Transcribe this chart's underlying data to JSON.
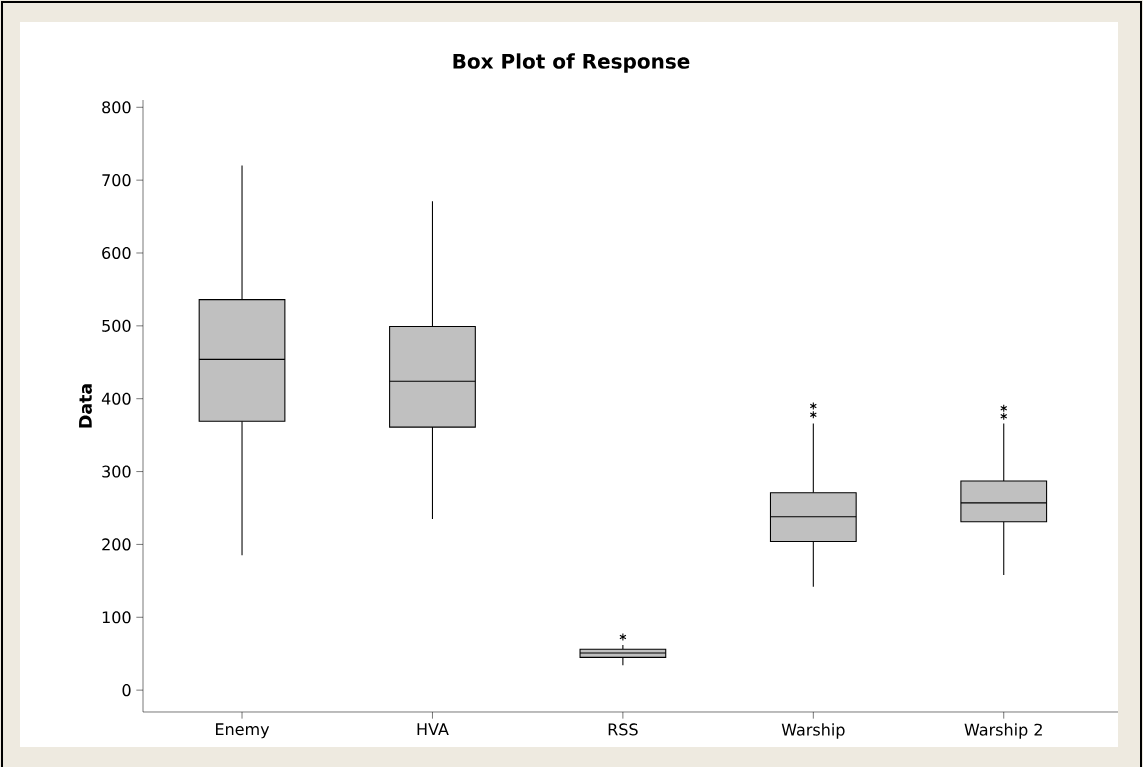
{
  "chart_data": {
    "type": "box",
    "title": "Box Plot of Response",
    "ylabel": "Data",
    "categories": [
      "Enemy",
      "HVA",
      "RSS",
      "Warship",
      "Warship 2"
    ],
    "color": "#c0c0c0",
    "boxes": [
      {
        "low": 185,
        "q1": 369,
        "median": 454,
        "q3": 536,
        "high": 720
      },
      {
        "low": 235,
        "q1": 361,
        "median": 424,
        "q3": 499,
        "high": 671
      },
      {
        "low": 34,
        "q1": 45,
        "median": 51,
        "q3": 56,
        "high": 62,
        "outliers": [
          73
        ]
      },
      {
        "low": 142,
        "q1": 204,
        "median": 238,
        "q3": 271,
        "high": 366,
        "outliers": [
          378,
          390
        ]
      },
      {
        "low": 158,
        "q1": 231,
        "median": 257,
        "q3": 287,
        "high": 366,
        "outliers": [
          376,
          387
        ]
      }
    ],
    "ylim": [
      -30,
      810
    ],
    "yticks": [
      0,
      100,
      200,
      300,
      400,
      500,
      600,
      700,
      800
    ]
  }
}
